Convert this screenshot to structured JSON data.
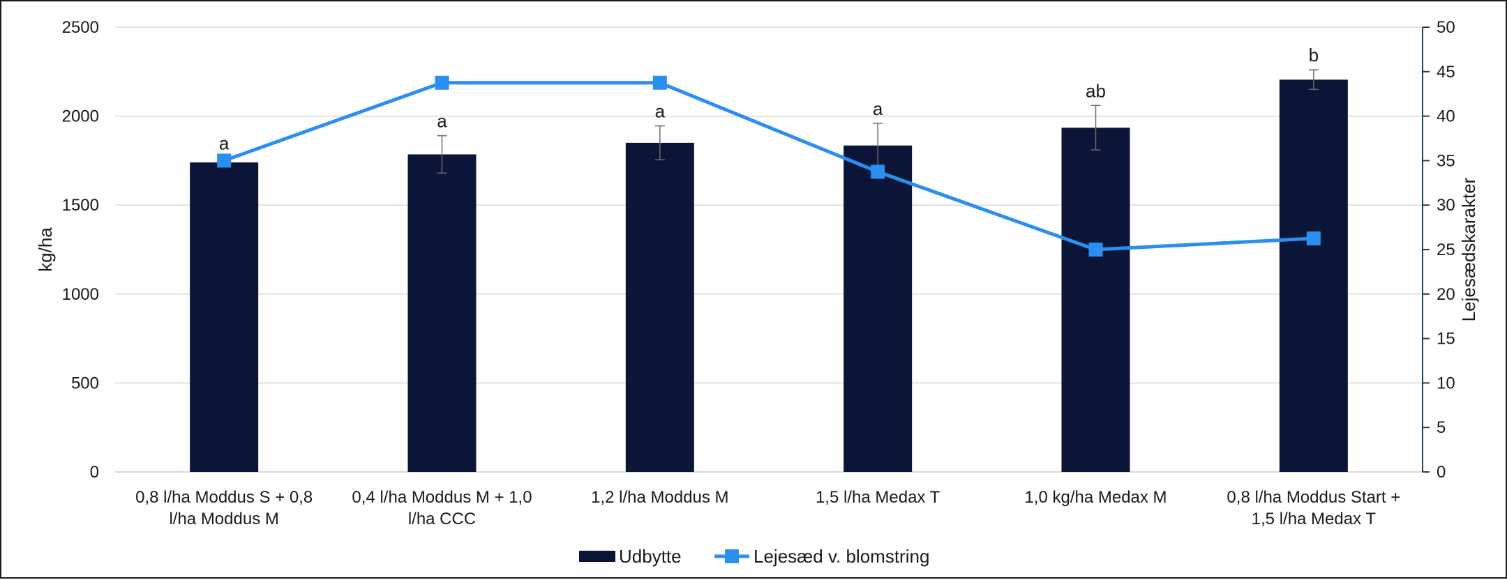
{
  "chart_data": {
    "type": "bar",
    "categories": [
      [
        "0,8 l/ha Moddus S + 0,8",
        "l/ha Moddus M"
      ],
      [
        "0,4 l/ha Moddus M + 1,0",
        "l/ha CCC"
      ],
      [
        "1,2 l/ha Moddus M"
      ],
      [
        "1,5 l/ha Medax T"
      ],
      [
        "1,0 kg/ha Medax M"
      ],
      [
        "0,8 l/ha Moddus Start +",
        "1,5 l/ha Medax T"
      ]
    ],
    "series": [
      {
        "name": "Udbytte",
        "type": "bar",
        "axis": "left",
        "color": "#0b1538",
        "values": [
          1740,
          1785,
          1850,
          1835,
          1935,
          2205
        ],
        "error": [
          25,
          105,
          95,
          125,
          125,
          55
        ],
        "labels": [
          "a",
          "a",
          "a",
          "a",
          "ab",
          "b"
        ]
      },
      {
        "name": "Lejesæd v. blomstring",
        "type": "line",
        "axis": "right",
        "color": "#2a8ff0",
        "values": [
          35,
          43.75,
          43.75,
          33.75,
          25,
          26.25
        ]
      }
    ],
    "ylabel": "kg/ha",
    "y2label": "Lejesædskarakter",
    "ylim": [
      0,
      2500
    ],
    "y2lim": [
      0,
      50
    ],
    "yticks": [
      "0",
      "500",
      "1000",
      "1500",
      "2000",
      "2500"
    ],
    "y2ticks": [
      "0",
      "5",
      "10",
      "15",
      "20",
      "25",
      "30",
      "35",
      "40",
      "45",
      "50"
    ],
    "grid": true,
    "legend_position": "bottom"
  }
}
